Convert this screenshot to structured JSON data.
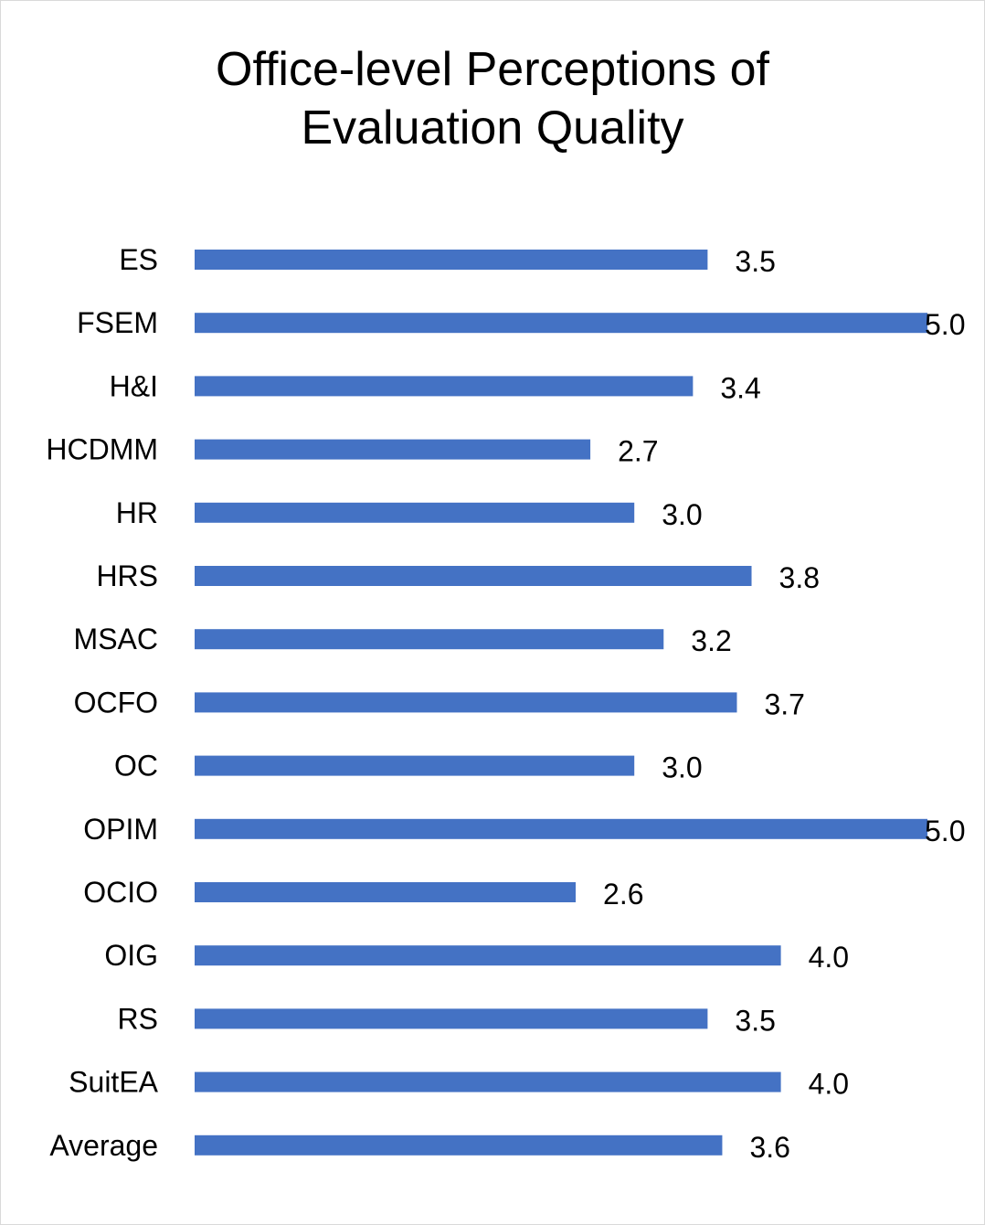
{
  "chart_data": {
    "type": "bar",
    "orientation": "horizontal",
    "title": "Office-level Perceptions of Evaluation Quality",
    "title_lines": [
      "Office-level Perceptions of",
      "Evaluation Quality"
    ],
    "categories": [
      "ES",
      "FSEM",
      "H&I",
      "HCDMM",
      "HR",
      "HRS",
      "MSAC",
      "OCFO",
      "OC",
      "OPIM",
      "OCIO",
      "OIG",
      "RS",
      "SuitEA",
      "Average"
    ],
    "values": [
      3.5,
      5.0,
      3.4,
      2.7,
      3.0,
      3.8,
      3.2,
      3.7,
      3.0,
      5.0,
      2.6,
      4.0,
      3.5,
      4.0,
      3.6
    ],
    "value_labels": [
      "3.5",
      "5.0",
      "3.4",
      "2.7",
      "3.0",
      "3.8",
      "3.2",
      "3.7",
      "3.0",
      "5.0",
      "2.6",
      "4.0",
      "3.5",
      "4.0",
      "3.6"
    ],
    "xlim": [
      0,
      5
    ],
    "grid": false,
    "legend": "none",
    "bar_color": "#4472c4"
  }
}
